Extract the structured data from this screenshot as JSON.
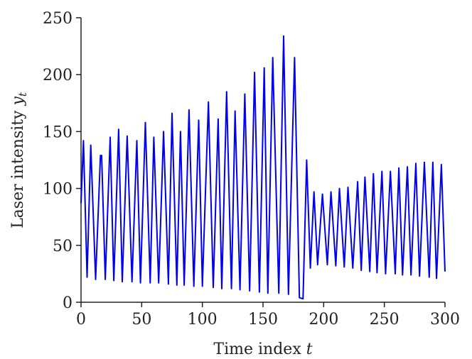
{
  "chart_data": {
    "type": "line",
    "xlabel": {
      "text": "Time index",
      "var": "t"
    },
    "ylabel": {
      "text": "Laser intensity",
      "var": "y",
      "sub": "t"
    },
    "x": [
      0,
      2,
      5,
      8,
      12,
      16,
      17,
      20,
      24,
      27,
      31,
      34,
      38,
      42,
      46,
      49,
      53,
      57,
      60,
      64,
      68,
      72,
      75,
      79,
      82,
      85,
      89,
      93,
      97,
      100,
      105,
      109,
      113,
      116,
      120,
      124,
      127,
      131,
      135,
      139,
      143,
      147,
      151,
      154,
      158,
      163,
      167,
      171,
      176,
      180,
      183,
      186,
      189,
      192,
      195,
      199,
      203,
      206,
      210,
      213,
      217,
      220,
      224,
      228,
      231,
      234,
      238,
      241,
      244,
      248,
      251,
      255,
      259,
      262,
      265,
      269,
      272,
      276,
      279,
      283,
      287,
      290,
      293,
      297,
      300
    ],
    "series": [
      {
        "color": "#0000ee",
        "values": [
          87,
          142,
          22,
          138,
          20,
          129,
          129,
          20,
          145,
          19,
          152,
          18,
          146,
          18,
          142,
          17,
          158,
          17,
          145,
          17,
          150,
          16,
          166,
          15,
          150,
          15,
          169,
          14,
          160,
          14,
          176,
          13,
          161,
          12,
          185,
          12,
          168,
          11,
          183,
          10,
          202,
          9,
          206,
          8,
          215,
          8,
          234,
          7,
          215,
          4,
          3,
          125,
          30,
          97,
          33,
          95,
          33,
          97,
          32,
          100,
          31,
          101,
          30,
          106,
          28,
          110,
          27,
          113,
          26,
          115,
          25,
          115,
          25,
          118,
          24,
          119,
          24,
          122,
          23,
          123,
          22,
          123,
          21,
          121,
          27
        ]
      }
    ],
    "xlim": [
      0,
      300
    ],
    "xticks": [
      0,
      50,
      100,
      150,
      200,
      250,
      300
    ],
    "ylim": [
      0,
      250
    ],
    "yticks": [
      0,
      50,
      100,
      150,
      200,
      250
    ]
  }
}
